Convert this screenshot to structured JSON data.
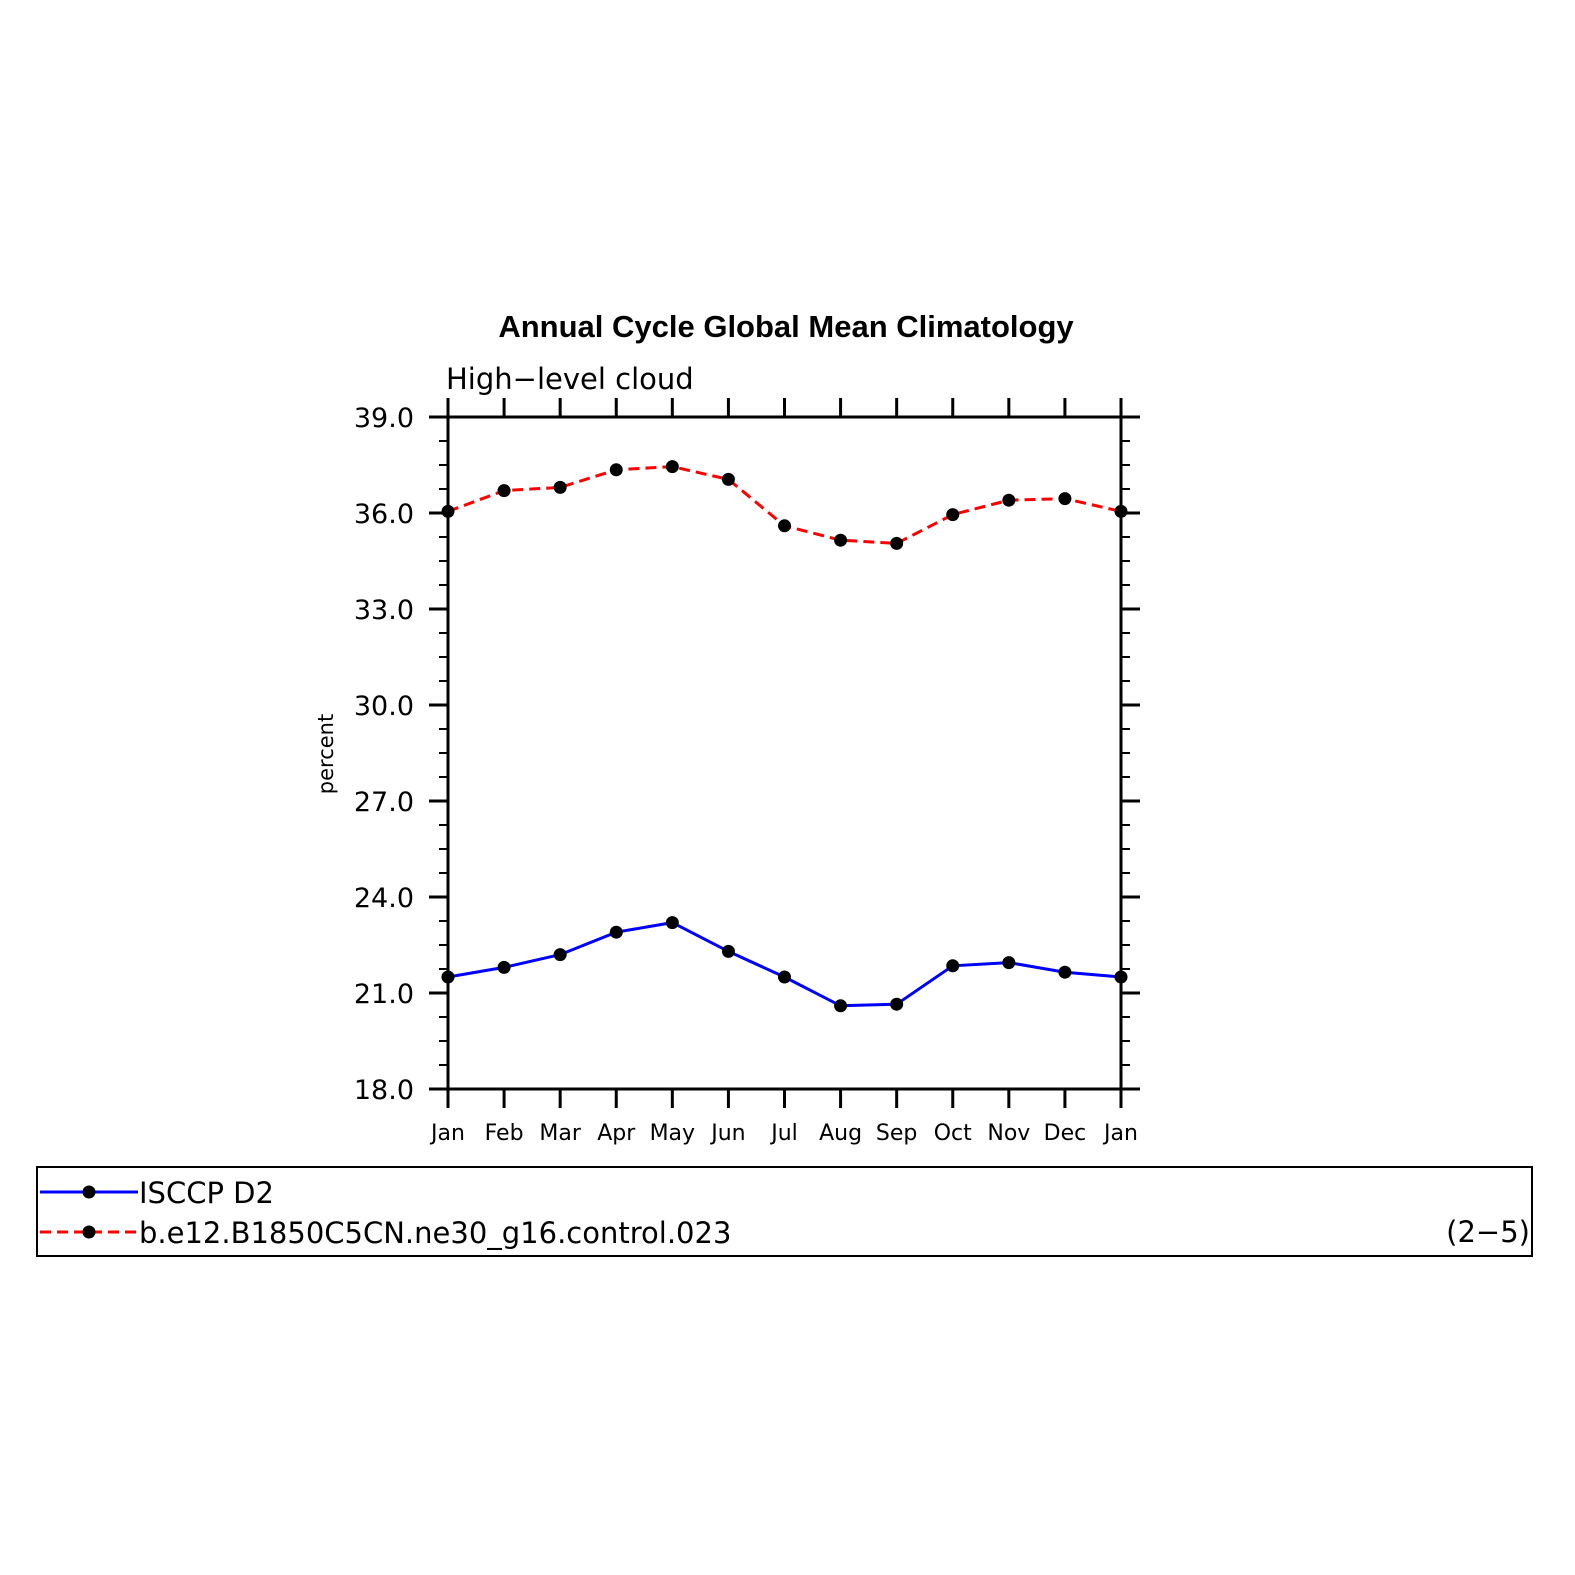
{
  "chart_data": {
    "type": "line",
    "title": "Annual Cycle Global Mean Climatology",
    "subtitle": "High−level cloud",
    "ylabel": "percent",
    "xlabel": "",
    "categories": [
      "Jan",
      "Feb",
      "Mar",
      "Apr",
      "May",
      "Jun",
      "Jul",
      "Aug",
      "Sep",
      "Oct",
      "Nov",
      "Dec",
      "Jan"
    ],
    "ylim": [
      18.0,
      39.0
    ],
    "yticks": [
      "18.0",
      "21.0",
      "24.0",
      "27.0",
      "30.0",
      "33.0",
      "36.0",
      "39.0"
    ],
    "series": [
      {
        "name": "ISCCP D2",
        "color": "#0000ff",
        "dash": "solid",
        "marker": "filled-circle",
        "values": [
          21.5,
          21.8,
          22.2,
          22.9,
          23.2,
          22.3,
          21.5,
          20.6,
          20.65,
          21.85,
          21.95,
          21.65,
          21.5
        ]
      },
      {
        "name": "b.e12.B1850C5CN.ne30_g16.control.023",
        "color": "#ff0000",
        "dash": "dashed",
        "marker": "filled-circle",
        "values": [
          36.05,
          36.7,
          36.8,
          37.35,
          37.45,
          37.05,
          35.6,
          35.15,
          35.05,
          35.95,
          36.4,
          36.45,
          36.05
        ]
      }
    ],
    "legend_position": "bottom",
    "panel_label": "(2−5)",
    "grid": false
  }
}
